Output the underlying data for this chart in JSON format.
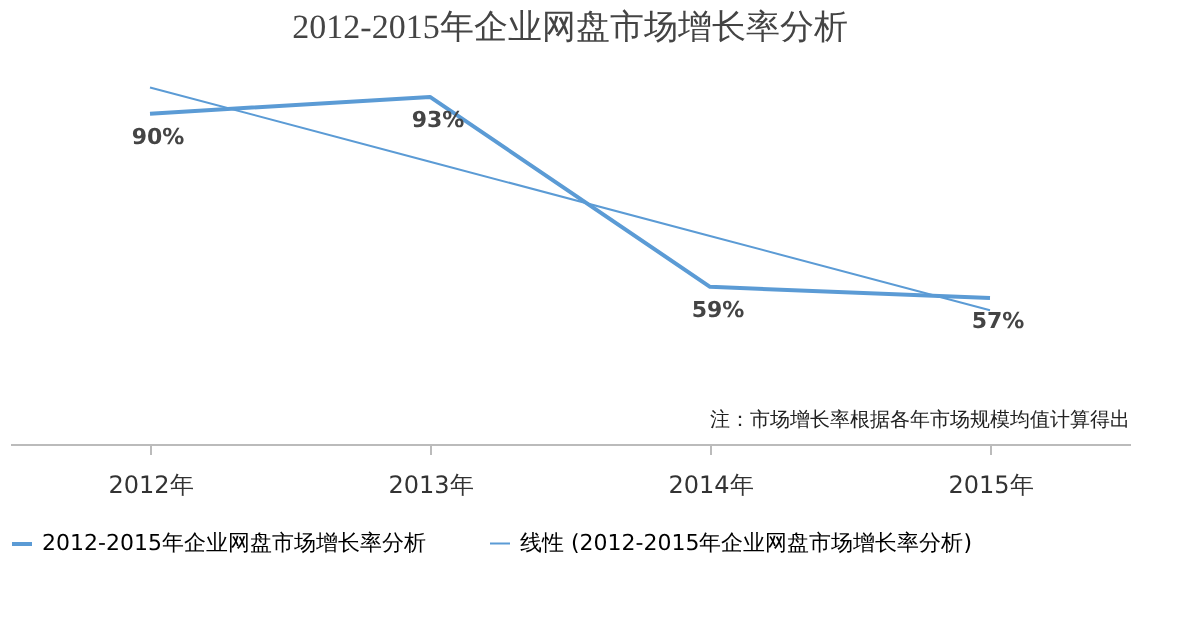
{
  "chart_data": {
    "type": "line",
    "title": "2012-2015年企业网盘市场增长率分析",
    "categories": [
      "2012年",
      "2013年",
      "2014年",
      "2015年"
    ],
    "series": [
      {
        "name": "2012-2015年企业网盘市场增长率分析",
        "color": "#5b9bd5",
        "values": [
          90,
          93,
          59,
          57
        ],
        "value_labels": [
          "90%",
          "93%",
          "59%",
          "57%"
        ],
        "line_style": "solid"
      },
      {
        "name": "线性 (2012-2015年企业网盘市场增长率分析)",
        "color": "#5b9bd5",
        "values": [
          94.7,
          81.4,
          68.1,
          54.8
        ],
        "line_style": "solid"
      }
    ],
    "annotations": [
      "注：市场增长率根据各年市场规模均值计算得出"
    ],
    "legend": "bottom",
    "grid": false,
    "marker": "none",
    "tick_labels": "x"
  }
}
